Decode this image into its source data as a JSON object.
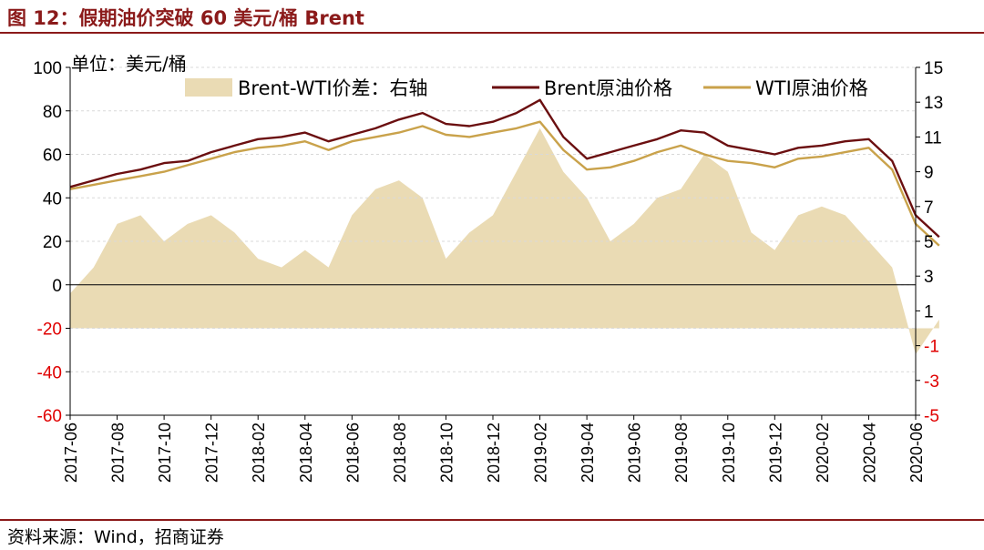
{
  "header": {
    "title": "图 12：假期油价突破 60 美元/桶 Brent"
  },
  "footer": {
    "source": "资料来源：Wind，招商证券"
  },
  "colors": {
    "brent": "#6B0F10",
    "wti": "#C9A24B",
    "spread": "#EADBB4",
    "negative": "#E00000",
    "rule": "#8B1A1A"
  },
  "chart_data": {
    "type": "line",
    "unit_label": "单位：美元/桶",
    "y_left": {
      "ticks": [
        100,
        80,
        60,
        40,
        20,
        0,
        -20,
        -40,
        -60
      ],
      "range": [
        -60,
        100
      ]
    },
    "y_right": {
      "ticks": [
        15,
        13,
        11,
        9,
        7,
        5,
        3,
        1,
        -1,
        -3,
        -5
      ],
      "range": [
        -5,
        15
      ]
    },
    "x_ticks": [
      "2017-06",
      "2017-08",
      "2017-10",
      "2017-12",
      "2018-02",
      "2018-04",
      "2018-06",
      "2018-08",
      "2018-10",
      "2018-12",
      "2019-02",
      "2019-04",
      "2019-06",
      "2019-08",
      "2019-10",
      "2019-12",
      "2020-02",
      "2020-04",
      "2020-06"
    ],
    "legend": {
      "spread": "Brent-WTI价差：右轴",
      "brent": "Brent原油价格",
      "wti": "WTI原油价格"
    },
    "series": [
      {
        "name": "Brent原油价格",
        "axis": "left",
        "x": [
          0,
          1,
          2,
          3,
          4,
          5,
          6,
          7,
          8,
          9,
          10,
          11,
          12,
          13,
          14,
          15,
          16,
          17,
          18,
          19,
          20,
          21,
          22,
          23,
          24,
          25,
          26,
          27,
          28,
          29,
          30,
          31,
          32,
          33,
          34,
          35,
          36,
          37
        ],
        "values": [
          45,
          48,
          51,
          53,
          56,
          57,
          61,
          64,
          67,
          68,
          70,
          66,
          69,
          72,
          76,
          79,
          74,
          73,
          75,
          79,
          85,
          68,
          58,
          61,
          64,
          67,
          71,
          70,
          64,
          62,
          60,
          63,
          64,
          66,
          67,
          57,
          32,
          22
        ]
      },
      {
        "name": "WTI原油价格",
        "axis": "left",
        "x": [
          0,
          1,
          2,
          3,
          4,
          5,
          6,
          7,
          8,
          9,
          10,
          11,
          12,
          13,
          14,
          15,
          16,
          17,
          18,
          19,
          20,
          21,
          22,
          23,
          24,
          25,
          26,
          27,
          28,
          29,
          30,
          31,
          32,
          33,
          34,
          35,
          36,
          37
        ],
        "values": [
          44,
          46,
          48,
          50,
          52,
          55,
          58,
          61,
          63,
          64,
          66,
          62,
          66,
          68,
          70,
          73,
          69,
          68,
          70,
          72,
          75,
          62,
          53,
          54,
          57,
          61,
          64,
          60,
          57,
          56,
          54,
          58,
          59,
          61,
          63,
          53,
          28,
          18
        ]
      },
      {
        "name": "Brent-WTI价差：右轴",
        "axis": "right",
        "x": [
          0,
          1,
          2,
          3,
          4,
          5,
          6,
          7,
          8,
          9,
          10,
          11,
          12,
          13,
          14,
          15,
          16,
          17,
          18,
          19,
          20,
          21,
          22,
          23,
          24,
          25,
          26,
          27,
          28,
          29,
          30,
          31,
          32,
          33,
          34,
          35,
          36,
          37
        ],
        "values": [
          2.0,
          3.5,
          6.0,
          6.5,
          5.0,
          6.0,
          6.5,
          5.5,
          4.0,
          3.5,
          4.5,
          3.5,
          6.5,
          8.0,
          8.5,
          7.5,
          4.0,
          5.5,
          6.5,
          9.0,
          11.5,
          9.0,
          7.5,
          5.0,
          6.0,
          7.5,
          8.0,
          10.0,
          9.0,
          5.5,
          4.5,
          6.5,
          7.0,
          6.5,
          5.0,
          3.5,
          -1.5,
          0.5
        ]
      }
    ]
  }
}
